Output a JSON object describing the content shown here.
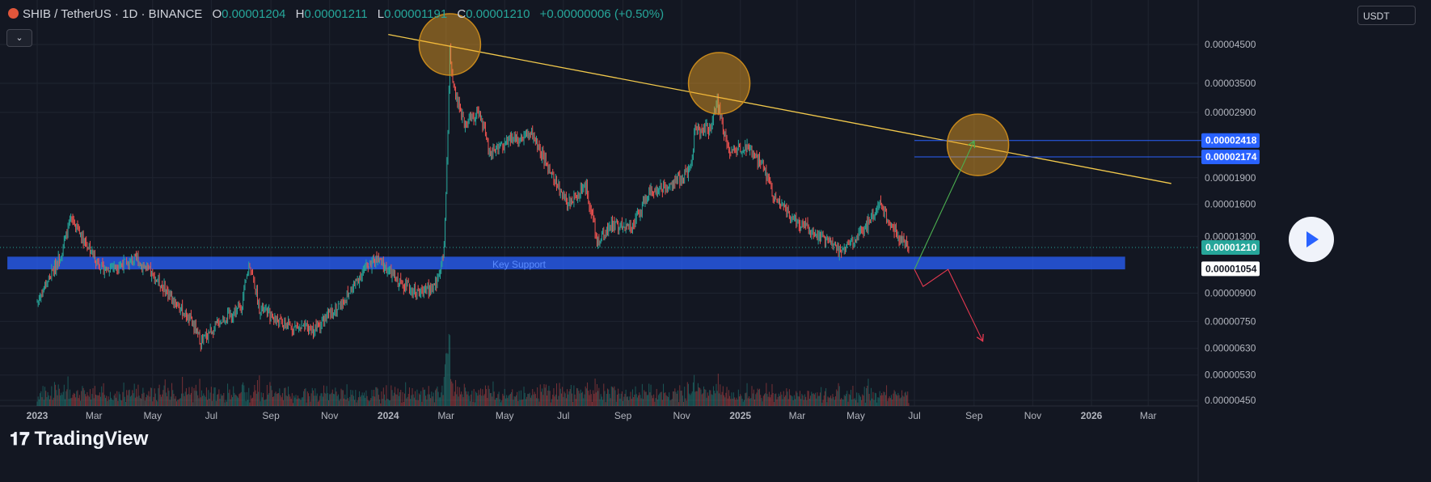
{
  "header": {
    "symbol": "SHIB / TetherUS · 1D · BINANCE",
    "o_label": "O",
    "o_value": "0.00001204",
    "h_label": "H",
    "h_value": "0.00001211",
    "l_label": "L",
    "l_value": "0.00001191",
    "c_label": "C",
    "c_value": "0.00001210",
    "change": "+0.00000006 (+0.50%)"
  },
  "currency_button": "USDT",
  "collapse_button": "⌄",
  "brand": "TradingView",
  "colors": {
    "up": "#26a69a",
    "down": "#ef5350",
    "trend": "#f2c94c",
    "support": "#2962ff",
    "background": "#131722"
  },
  "chart_data": {
    "type": "candlestick",
    "title": "",
    "y_scale": "log",
    "ylim": [
      4.2e-06,
      5.5e-06
    ],
    "y_ticks": [
      "0.00004500",
      "0.00003500",
      "0.00002900",
      "0.00001900",
      "0.00001600",
      "0.00001300",
      "0.00000900",
      "0.00000750",
      "0.00000630",
      "0.00000530",
      "0.00000450"
    ],
    "x_ticks": [
      "2023",
      "Mar",
      "May",
      "Jul",
      "Sep",
      "Nov",
      "2024",
      "Mar",
      "May",
      "Jul",
      "Sep",
      "Nov",
      "2025",
      "Mar",
      "May",
      "Jul",
      "Sep",
      "Nov",
      "2026",
      "Mar"
    ],
    "last_price": "0.00001210",
    "price_labels": [
      {
        "text": "0.00002418",
        "value": 2.418e-05,
        "style": "blue"
      },
      {
        "text": "0.00002174",
        "value": 2.174e-05,
        "style": "blue"
      },
      {
        "text": "0.00001210",
        "value": 1.21e-05,
        "style": "green"
      },
      {
        "text": "0.00001054",
        "value": 1.054e-05,
        "style": "white"
      }
    ],
    "series": [
      {
        "date": "2023-01-01",
        "value": 8.5e-06
      },
      {
        "date": "2023-01-25",
        "value": 1.15e-05
      },
      {
        "date": "2023-02-05",
        "value": 1.45e-05
      },
      {
        "date": "2023-02-18",
        "value": 1.28e-05
      },
      {
        "date": "2023-03-10",
        "value": 1.05e-05
      },
      {
        "date": "2023-04-15",
        "value": 1.12e-05
      },
      {
        "date": "2023-05-10",
        "value": 9.5e-06
      },
      {
        "date": "2023-06-10",
        "value": 7.5e-06
      },
      {
        "date": "2023-06-20",
        "value": 6.6e-06
      },
      {
        "date": "2023-07-10",
        "value": 7.5e-06
      },
      {
        "date": "2023-08-01",
        "value": 8.2e-06
      },
      {
        "date": "2023-08-10",
        "value": 1.1e-05
      },
      {
        "date": "2023-08-20",
        "value": 8.2e-06
      },
      {
        "date": "2023-09-15",
        "value": 7.3e-06
      },
      {
        "date": "2023-10-15",
        "value": 7.1e-06
      },
      {
        "date": "2023-11-15",
        "value": 8.5e-06
      },
      {
        "date": "2023-12-10",
        "value": 1.08e-05
      },
      {
        "date": "2023-12-20",
        "value": 1.12e-05
      },
      {
        "date": "2024-01-10",
        "value": 9.8e-06
      },
      {
        "date": "2024-02-01",
        "value": 9e-06
      },
      {
        "date": "2024-02-20",
        "value": 9.5e-06
      },
      {
        "date": "2024-02-28",
        "value": 1.2e-05
      },
      {
        "date": "2024-03-03",
        "value": 2.5e-05
      },
      {
        "date": "2024-03-05",
        "value": 4.5e-05
      },
      {
        "date": "2024-03-08",
        "value": 3.45e-05
      },
      {
        "date": "2024-03-20",
        "value": 2.7e-05
      },
      {
        "date": "2024-04-05",
        "value": 2.9e-05
      },
      {
        "date": "2024-04-15",
        "value": 2.25e-05
      },
      {
        "date": "2024-05-10",
        "value": 2.45e-05
      },
      {
        "date": "2024-05-28",
        "value": 2.55e-05
      },
      {
        "date": "2024-06-20",
        "value": 1.9e-05
      },
      {
        "date": "2024-07-05",
        "value": 1.6e-05
      },
      {
        "date": "2024-07-25",
        "value": 1.8e-05
      },
      {
        "date": "2024-08-05",
        "value": 1.25e-05
      },
      {
        "date": "2024-08-20",
        "value": 1.4e-05
      },
      {
        "date": "2024-09-10",
        "value": 1.38e-05
      },
      {
        "date": "2024-09-30",
        "value": 1.75e-05
      },
      {
        "date": "2024-10-20",
        "value": 1.8e-05
      },
      {
        "date": "2024-11-10",
        "value": 2e-05
      },
      {
        "date": "2024-11-15",
        "value": 2.6e-05
      },
      {
        "date": "2024-12-01",
        "value": 2.6e-05
      },
      {
        "date": "2024-12-08",
        "value": 3.1e-05
      },
      {
        "date": "2024-12-20",
        "value": 2.25e-05
      },
      {
        "date": "2025-01-05",
        "value": 2.35e-05
      },
      {
        "date": "2025-01-25",
        "value": 2.05e-05
      },
      {
        "date": "2025-02-05",
        "value": 1.65e-05
      },
      {
        "date": "2025-03-05",
        "value": 1.4e-05
      },
      {
        "date": "2025-03-25",
        "value": 1.3e-05
      },
      {
        "date": "2025-04-15",
        "value": 1.18e-05
      },
      {
        "date": "2025-05-10",
        "value": 1.35e-05
      },
      {
        "date": "2025-05-25",
        "value": 1.62e-05
      },
      {
        "date": "2025-06-10",
        "value": 1.35e-05
      },
      {
        "date": "2025-06-25",
        "value": 1.21e-05
      }
    ],
    "annotations": {
      "trendline": {
        "from": {
          "date": "2024-01-01",
          "value": 4.8e-05
        },
        "to": {
          "date": "2026-03-25",
          "value": 1.83e-05
        }
      },
      "support_zone": {
        "label": "Key Support",
        "from_date": "2022-12-01",
        "to_date": "2026-02-05",
        "low": 1.05e-05,
        "high": 1.14e-05
      },
      "horizontal_lines": [
        {
          "value": 2.418e-05,
          "from_date": "2025-07-01",
          "to_date": "2026-05-01"
        },
        {
          "value": 2.174e-05,
          "from_date": "2025-07-01",
          "to_date": "2026-05-01"
        }
      ],
      "circles": [
        {
          "date": "2024-03-05",
          "value": 4.5e-05
        },
        {
          "date": "2024-12-10",
          "value": 3.5e-05
        },
        {
          "date": "2025-09-05",
          "value": 2.35e-05
        }
      ],
      "bull_path": [
        {
          "date": "2025-07-01",
          "value": 1.05e-05
        },
        {
          "date": "2025-09-01",
          "value": 2.41e-05
        }
      ],
      "bear_path": [
        {
          "date": "2025-07-01",
          "value": 1.05e-05
        },
        {
          "date": "2025-07-10",
          "value": 9.4e-06
        },
        {
          "date": "2025-08-05",
          "value": 1.05e-05
        },
        {
          "date": "2025-09-10",
          "value": 6.6e-06
        }
      ]
    }
  }
}
